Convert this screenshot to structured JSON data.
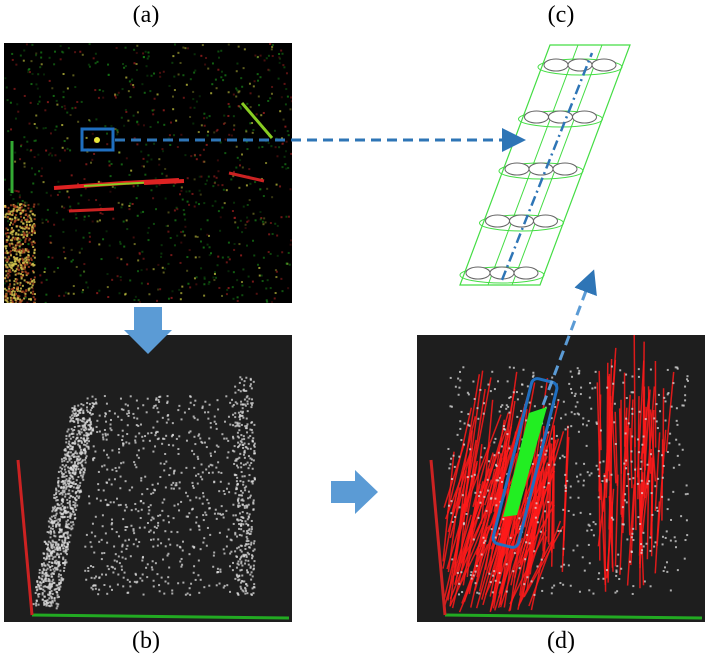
{
  "captions": {
    "a": "(a)",
    "b": "(b)",
    "c": "(c)",
    "d": "(d)"
  },
  "colors": {
    "panel_dark": "#000000",
    "pointcloud_bg": "#1e1e1e",
    "arrow_blue": "#5b9bd5",
    "dash_blue": "#2e75b6",
    "highlight_box": "#1f6fc0",
    "red_lines": "#ff0000",
    "green_track": "#22ee22",
    "axis_red": "#cc2222",
    "axis_green": "#22aa22",
    "cylinder_green": "#44dd44"
  },
  "icons": [
    "down-arrow-icon",
    "right-arrow-icon"
  ]
}
